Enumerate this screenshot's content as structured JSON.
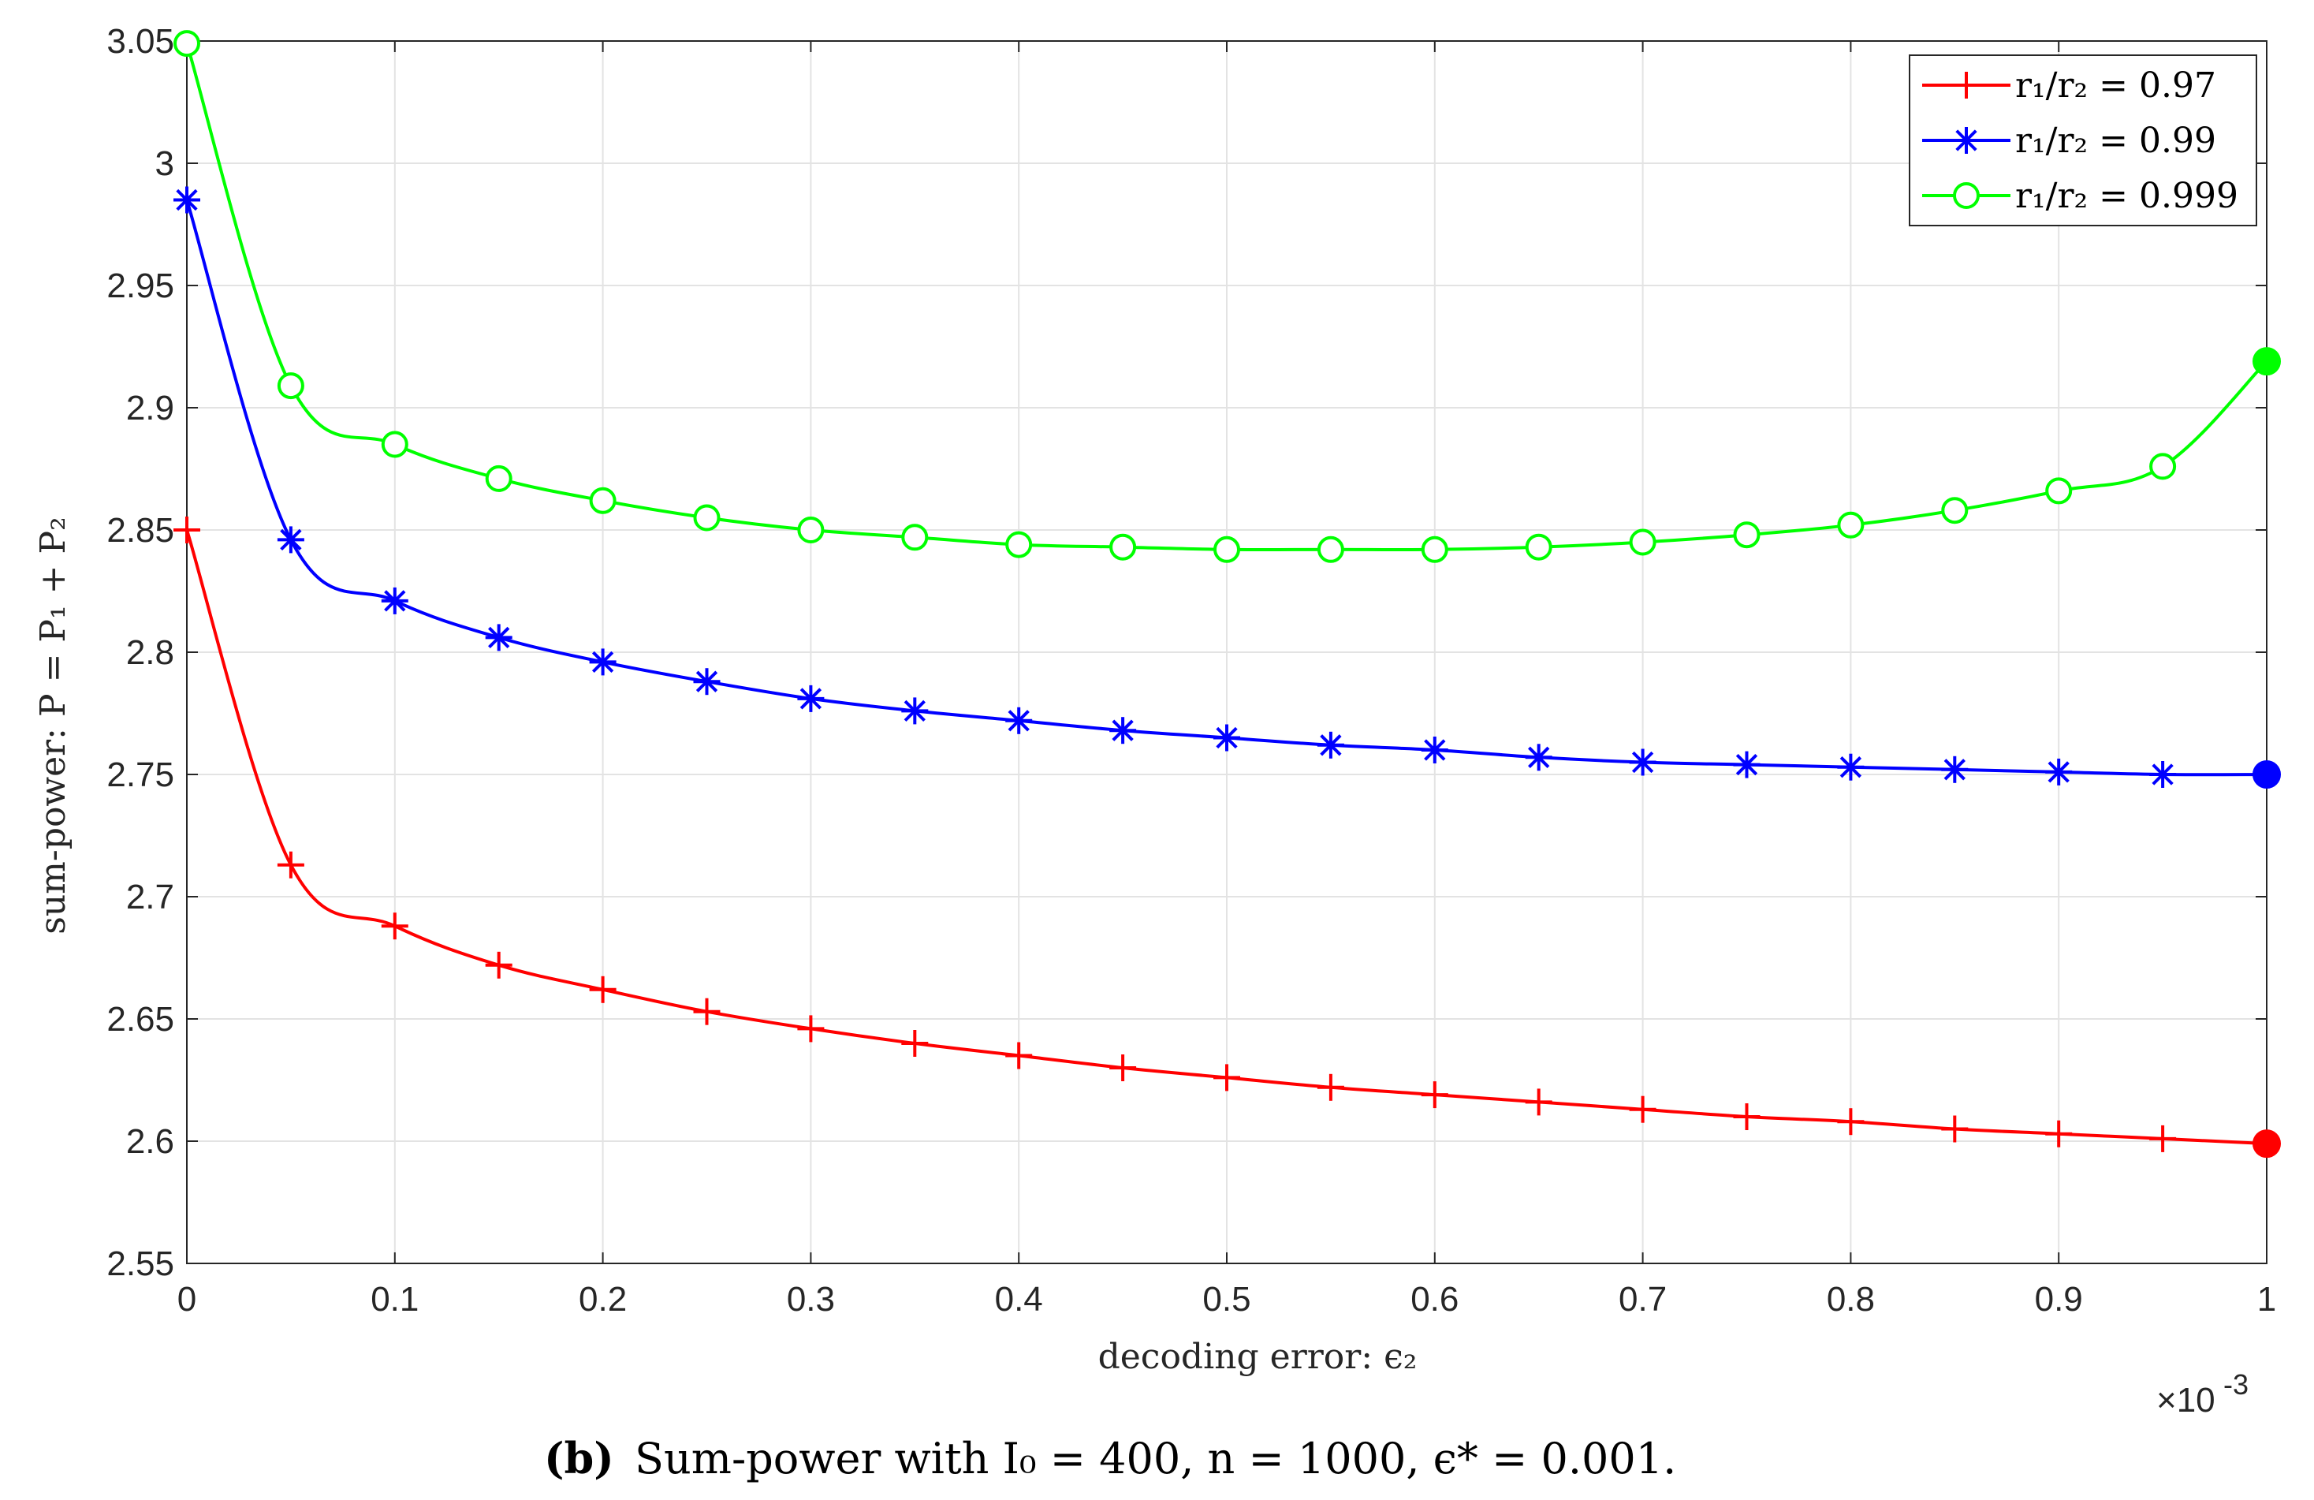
{
  "chart_data": {
    "type": "line",
    "title": "",
    "xlabel": "decoding error: ϵ₂",
    "ylabel": "sum-power: P = P₁ + P₂",
    "x_exponent_label": "×10",
    "x_exponent_power": "-3",
    "xlim": [
      0,
      1
    ],
    "ylim": [
      2.55,
      3.05
    ],
    "xticks": [
      "0",
      "0.1",
      "0.2",
      "0.3",
      "0.4",
      "0.5",
      "0.6",
      "0.7",
      "0.8",
      "0.9",
      "1"
    ],
    "yticks": [
      "2.55",
      "2.6",
      "2.65",
      "2.7",
      "2.75",
      "2.8",
      "2.85",
      "2.9",
      "2.95",
      "3",
      "3.05"
    ],
    "grid": true,
    "legend_position": "top-right",
    "x": [
      0,
      0.05,
      0.1,
      0.15,
      0.2,
      0.25,
      0.3,
      0.35,
      0.4,
      0.45,
      0.5,
      0.55,
      0.6,
      0.65,
      0.7,
      0.75,
      0.8,
      0.85,
      0.9,
      0.95,
      1.0
    ],
    "series": [
      {
        "name": "r₁/r₂ = 0.97",
        "color": "#ff0000",
        "marker": "plus",
        "values": [
          2.85,
          2.713,
          2.688,
          2.672,
          2.662,
          2.653,
          2.646,
          2.64,
          2.635,
          2.63,
          2.626,
          2.622,
          2.619,
          2.616,
          2.613,
          2.61,
          2.608,
          2.605,
          2.603,
          2.601,
          2.599
        ],
        "endpoint": {
          "x": 1.0,
          "y": 2.599
        }
      },
      {
        "name": "r₁/r₂ = 0.99",
        "color": "#0000ff",
        "marker": "asterisk",
        "values": [
          2.985,
          2.846,
          2.821,
          2.806,
          2.796,
          2.788,
          2.781,
          2.776,
          2.772,
          2.768,
          2.765,
          2.762,
          2.76,
          2.757,
          2.755,
          2.754,
          2.753,
          2.752,
          2.751,
          2.75,
          2.75
        ],
        "endpoint": {
          "x": 1.0,
          "y": 2.75
        }
      },
      {
        "name": "r₁/r₂ = 0.999",
        "color": "#00ff00",
        "marker": "circle",
        "values": [
          3.049,
          2.909,
          2.885,
          2.871,
          2.862,
          2.855,
          2.85,
          2.847,
          2.844,
          2.843,
          2.842,
          2.842,
          2.842,
          2.843,
          2.845,
          2.848,
          2.852,
          2.858,
          2.866,
          2.876,
          2.919
        ],
        "endpoint": {
          "x": 1.0,
          "y": 2.919
        }
      }
    ],
    "caption": {
      "tag": "(b)",
      "text": "Sum-power with I₀ = 400, n = 1000, ϵ* = 0.001."
    }
  }
}
